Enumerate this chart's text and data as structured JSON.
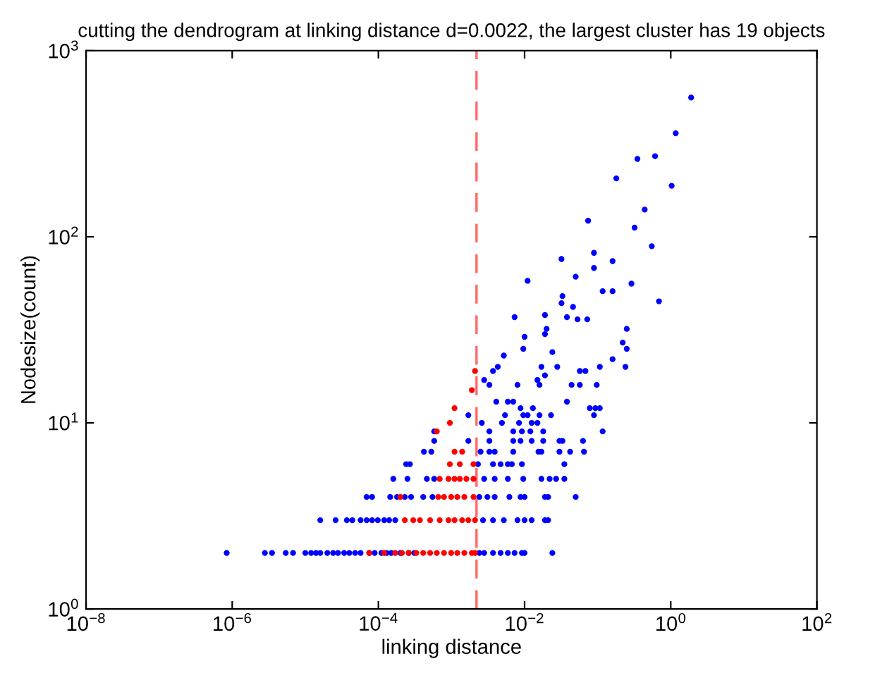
{
  "chart_data": {
    "type": "scatter",
    "title": "cutting the dendrogram at linking distance d=0.0022, the largest cluster has 19 objects",
    "xlabel": "linking distance",
    "ylabel": "Nodesize(count)",
    "log": "xy",
    "grid": false,
    "marker": "circle",
    "xlim": [
      1e-08,
      100
    ],
    "ylim": [
      1,
      1000
    ],
    "xticks": [
      {
        "value": 1e-08,
        "label": "10$^{−8}$"
      },
      {
        "value": 1e-06,
        "label": "10$^{−6}$"
      },
      {
        "value": 0.0001,
        "label": "10$^{−4}$"
      },
      {
        "value": 0.01,
        "label": "10$^{−2}$"
      },
      {
        "value": 1,
        "label": "10$^{0}$"
      },
      {
        "value": 100,
        "label": "10$^{2}$"
      }
    ],
    "yticks": [
      {
        "value": 1,
        "label": "10$^{0}$"
      },
      {
        "value": 10,
        "label": "10$^{1}$"
      },
      {
        "value": 100,
        "label": "10$^{2}$"
      },
      {
        "value": 1000,
        "label": "10$^{3}$"
      }
    ],
    "ref_lines": [
      {
        "axis": "x",
        "value": 0.0022,
        "color": "#ff6666",
        "line_style": "dashed"
      }
    ],
    "series": [
      {
        "color": "#0000ff",
        "x": [
          8.4e-07,
          2.8e-06,
          3.5e-06,
          5.4e-06,
          6.8e-06,
          1e-05,
          1.2e-05,
          1.4e-05,
          1.6e-05,
          2e-05,
          2.4e-05,
          2.8e-05,
          3.4e-05,
          4e-05,
          4.8e-05,
          5.7e-05,
          7.5e-05,
          8.9e-05,
          0.00011,
          0.00013,
          0.00015,
          0.0002,
          0.00026,
          0.00031,
          0.0024,
          0.0028,
          0.0037,
          0.0047,
          0.0059,
          0.0073,
          0.0092,
          0.01,
          0.024,
          1.6e-05,
          2.6e-05,
          3.7e-05,
          4.4e-05,
          5.7e-05,
          6.9e-05,
          8.2e-05,
          9.8e-05,
          0.00012,
          0.00014,
          0.00017,
          0.0027,
          0.0037,
          0.0052,
          0.008,
          0.01,
          0.0125,
          0.019,
          0.021,
          6.9e-05,
          8.2e-05,
          0.000145,
          0.00018,
          0.00023,
          0.00028,
          0.00041,
          0.00055,
          0.0024,
          0.0031,
          0.0039,
          0.0062,
          0.0088,
          0.01,
          0.019,
          0.021,
          0.05,
          0.00016,
          0.00025,
          0.00046,
          0.00058,
          0.0028,
          0.0039,
          0.0059,
          0.0096,
          0.017,
          0.022,
          0.027,
          0.035,
          0.00024,
          0.00027,
          0.0023,
          0.0037,
          0.0047,
          0.0059,
          0.0067,
          0.0092,
          0.035,
          0.00042,
          0.00053,
          0.0025,
          0.0033,
          0.0039,
          0.007,
          0.0155,
          0.017,
          0.03,
          0.042,
          0.065,
          0.00058,
          0.0017,
          0.0033,
          0.007,
          0.0088,
          0.0125,
          0.018,
          0.03,
          0.033,
          0.063,
          0.00058,
          0.0033,
          0.007,
          0.0092,
          0.012,
          0.018,
          0.117,
          0.0026,
          0.0049,
          0.0084,
          0.0125,
          0.015,
          0.0017,
          0.0054,
          0.0096,
          0.011,
          0.016,
          0.023,
          0.089,
          0.0088,
          0.013,
          0.078,
          0.093,
          0.107,
          0.0041,
          0.0059,
          0.007,
          0.038,
          0.0033,
          0.008,
          0.016,
          0.044,
          0.057,
          0.097,
          0.0028,
          0.015,
          0.019,
          0.0037,
          0.057,
          0.068,
          0.0043,
          0.017,
          0.028,
          0.107,
          0.24,
          0.16,
          0.0052,
          1.9,
          1.17,
          0.35,
          0.61,
          0.18,
          1.03,
          0.44,
          0.074,
          0.32,
          0.55,
          0.032,
          0.089,
          0.16,
          0.089,
          0.011,
          0.05,
          0.29,
          0.69,
          0.033,
          0.032,
          0.117,
          0.16,
          0.046,
          0.0073,
          0.019,
          0.038,
          0.053,
          0.072,
          0.02,
          0.019,
          0.25,
          0.01,
          0.22,
          0.25,
          0.0096,
          0.024
        ],
        "values": [
          2,
          2,
          2,
          2,
          2,
          2,
          2,
          2,
          2,
          2,
          2,
          2,
          2,
          2,
          2,
          2,
          2,
          2,
          2,
          2,
          2,
          2,
          2,
          2,
          2,
          2,
          2,
          2,
          2,
          2,
          2,
          2,
          2,
          3,
          3,
          3,
          3,
          3,
          3,
          3,
          3,
          3,
          3,
          3,
          3,
          3,
          3,
          3,
          3,
          3,
          3,
          3,
          4,
          4,
          4,
          4,
          4,
          4,
          4,
          4,
          4,
          4,
          4,
          4,
          4,
          4,
          4,
          4,
          4,
          5,
          5,
          5,
          5,
          5,
          5,
          5,
          5,
          5,
          5,
          5,
          5,
          6,
          6,
          6,
          6,
          6,
          6,
          6,
          6,
          6,
          7,
          7,
          7,
          7,
          7,
          7,
          7,
          7,
          7,
          7,
          7,
          8,
          8,
          8,
          8,
          8,
          8,
          8,
          8,
          8,
          8,
          9,
          9,
          9,
          9,
          9,
          9,
          9,
          10,
          10,
          10,
          10,
          10,
          11,
          11,
          11,
          11,
          11,
          11,
          11,
          12,
          12,
          12,
          12,
          12,
          13,
          13,
          13,
          13,
          16,
          16,
          16,
          16,
          16,
          16,
          17,
          17,
          18,
          19,
          19,
          19,
          20,
          20,
          20,
          20,
          20,
          22,
          23,
          560,
          360,
          262,
          271,
          206,
          188,
          140,
          122,
          112,
          89,
          76,
          82,
          74,
          68,
          58,
          61,
          56,
          45,
          48,
          44,
          51,
          51,
          42,
          37,
          38,
          37,
          36,
          36,
          32,
          30,
          32,
          29,
          27,
          25,
          25,
          24
        ]
      },
      {
        "color": "#ff0000",
        "x": [
          7.5e-05,
          0.00012,
          0.00017,
          0.00021,
          0.00026,
          0.00033,
          0.00041,
          0.00051,
          0.00063,
          0.00079,
          0.00099,
          0.0012,
          0.0015,
          0.0019,
          0.0021,
          0.00023,
          0.0003,
          0.00037,
          0.00051,
          0.00069,
          0.00091,
          0.0011,
          0.0014,
          0.0017,
          0.0021,
          0.0002,
          0.00066,
          0.00079,
          0.00099,
          0.0012,
          0.0015,
          0.002,
          0.00069,
          0.00091,
          0.0011,
          0.0013,
          0.0016,
          0.002,
          0.00095,
          0.0013,
          0.002,
          0.0011,
          0.0014,
          0.00063,
          0.00095,
          0.0011,
          0.0019,
          0.0021
        ],
        "values": [
          2,
          2,
          2,
          2,
          2,
          2,
          2,
          2,
          2,
          2,
          2,
          2,
          2,
          2,
          2,
          3,
          3,
          3,
          3,
          3,
          3,
          3,
          3,
          3,
          3,
          4,
          4,
          4,
          4,
          4,
          4,
          4,
          5,
          5,
          5,
          5,
          5,
          5,
          6,
          6,
          6,
          7,
          7,
          9,
          10,
          12,
          15,
          19
        ]
      }
    ]
  }
}
